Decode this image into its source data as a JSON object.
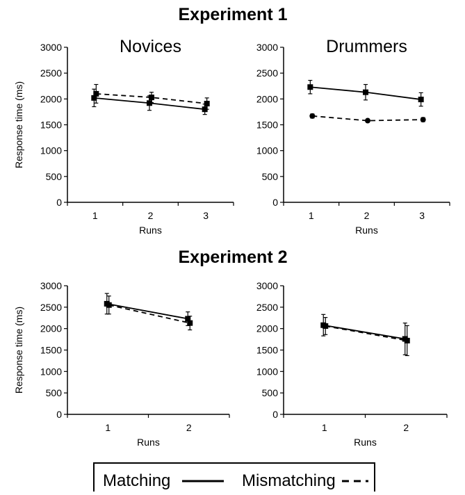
{
  "figure": {
    "experiments": [
      {
        "title": "Experiment 1"
      },
      {
        "title": "Experiment 2"
      }
    ],
    "legend": {
      "matching_label": "Matching",
      "mismatching_label": "Mismatching"
    }
  },
  "chart_data": [
    {
      "type": "line",
      "title": "Novices",
      "xlabel": "Runs",
      "ylabel": "Response time (ms)",
      "x": [
        1,
        2,
        3
      ],
      "xticks": [
        "1",
        "2",
        "3"
      ],
      "ylim": [
        0,
        3000
      ],
      "yticks": [
        "0",
        "500",
        "1000",
        "1500",
        "2000",
        "2500",
        "3000"
      ],
      "series": [
        {
          "name": "Matching",
          "style": "solid",
          "marker": "square",
          "values": [
            2020,
            1920,
            1800
          ],
          "errors": [
            170,
            140,
            100
          ]
        },
        {
          "name": "Mismatching",
          "style": "dashed",
          "marker": "square",
          "values": [
            2100,
            2030,
            1910
          ],
          "errors": [
            180,
            100,
            110
          ]
        }
      ]
    },
    {
      "type": "line",
      "title": "Drummers",
      "xlabel": "Runs",
      "ylabel": "",
      "x": [
        1,
        2,
        3
      ],
      "xticks": [
        "1",
        "2",
        "3"
      ],
      "ylim": [
        0,
        3000
      ],
      "yticks": [
        "0",
        "500",
        "1000",
        "1500",
        "2000",
        "2500",
        "3000"
      ],
      "series": [
        {
          "name": "Matching",
          "style": "solid",
          "marker": "square",
          "values": [
            2230,
            2130,
            1990
          ],
          "errors": [
            130,
            150,
            130
          ]
        },
        {
          "name": "Mismatching",
          "style": "dashed",
          "marker": "circle",
          "values": [
            1670,
            1580,
            1600
          ],
          "errors": [
            40,
            30,
            40
          ]
        }
      ]
    },
    {
      "type": "line",
      "title": "",
      "xlabel": "Runs",
      "ylabel": "Response time (ms)",
      "x": [
        1,
        2
      ],
      "xticks": [
        "1",
        "2"
      ],
      "ylim": [
        0,
        3000
      ],
      "yticks": [
        "0",
        "500",
        "1000",
        "1500",
        "2000",
        "2500",
        "3000"
      ],
      "series": [
        {
          "name": "Matching",
          "style": "solid",
          "marker": "square",
          "values": [
            2580,
            2230
          ],
          "errors": [
            240,
            160
          ]
        },
        {
          "name": "Mismatching",
          "style": "dashed",
          "marker": "square",
          "values": [
            2550,
            2130
          ],
          "errors": [
            210,
            160
          ]
        }
      ]
    },
    {
      "type": "line",
      "title": "",
      "xlabel": "Runs",
      "ylabel": "",
      "x": [
        1,
        2
      ],
      "xticks": [
        "1",
        "2"
      ],
      "ylim": [
        0,
        3000
      ],
      "yticks": [
        "0",
        "500",
        "1000",
        "1500",
        "2000",
        "2500",
        "3000"
      ],
      "series": [
        {
          "name": "Matching",
          "style": "solid",
          "marker": "square",
          "values": [
            2080,
            1760
          ],
          "errors": [
            250,
            370
          ]
        },
        {
          "name": "Mismatching",
          "style": "dashed",
          "marker": "square",
          "values": [
            2060,
            1720
          ],
          "errors": [
            200,
            350
          ]
        }
      ]
    }
  ]
}
